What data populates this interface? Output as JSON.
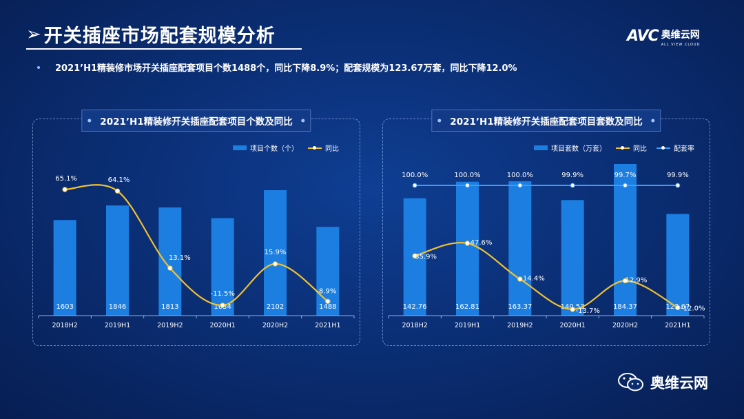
{
  "header": {
    "title": "开关插座市场配套规模分析",
    "arrow": "➢"
  },
  "logo": {
    "mark": "AVC",
    "cn": "奥维云网",
    "en": "ALL VIEW CLOUD"
  },
  "summary": "2021’H1精装修市场开关插座配套项目个数1488个，同比下降8.9%；配套规模为123.67万套，同比下降12.0%",
  "watermark": "奥维云网",
  "colors": {
    "bar": "#1b7ee0",
    "yoy": "#f2c12e",
    "rate": "#3f9df5"
  },
  "chart_data": [
    {
      "type": "bar",
      "title": "2021’H1精装修开关插座配套项目个数及同比",
      "legend": [
        "项目个数（个）",
        "同比"
      ],
      "categories": [
        "2018H2",
        "2019H1",
        "2019H2",
        "2020H1",
        "2020H2",
        "2021H1"
      ],
      "series": [
        {
          "name": "项目个数（个）",
          "type": "bar",
          "values": [
            1603,
            1846,
            1813,
            1634,
            2102,
            1488
          ],
          "labels": [
            "1603",
            "1846",
            "1813",
            "1634",
            "2102",
            "1488"
          ]
        },
        {
          "name": "同比",
          "type": "line",
          "values": [
            65.1,
            64.1,
            13.1,
            -11.5,
            15.9,
            -8.9
          ],
          "labels": [
            "65.1%",
            "64.1%",
            "13.1%",
            "-11.5%",
            "15.9%",
            "-8.9%"
          ]
        }
      ]
    },
    {
      "type": "bar",
      "title": "2021’H1精装修开关插座配套项目套数及同比",
      "legend": [
        "项目套数（万套）",
        "同比",
        "配套率"
      ],
      "categories": [
        "2018H2",
        "2019H1",
        "2019H2",
        "2020H1",
        "2020H2",
        "2021H1"
      ],
      "series": [
        {
          "name": "项目套数（万套）",
          "type": "bar",
          "values": [
            142.76,
            162.81,
            163.37,
            140.53,
            184.37,
            123.67
          ],
          "labels": [
            "142.76",
            "162.81",
            "163.37",
            "140.53",
            "184.37",
            "123.67"
          ]
        },
        {
          "name": "同比",
          "type": "line",
          "values": [
            35.9,
            47.6,
            14.4,
            -13.7,
            12.9,
            -12.0
          ],
          "labels": [
            "35.9%",
            "47.6%",
            "14.4%",
            "-13.7%",
            "12.9%",
            "-12.0%"
          ]
        },
        {
          "name": "配套率",
          "type": "line",
          "values": [
            100.0,
            100.0,
            100.0,
            99.9,
            99.7,
            99.9
          ],
          "labels": [
            "100.0%",
            "100.0%",
            "100.0%",
            "99.9%",
            "99.7%",
            "99.9%"
          ]
        }
      ]
    }
  ]
}
